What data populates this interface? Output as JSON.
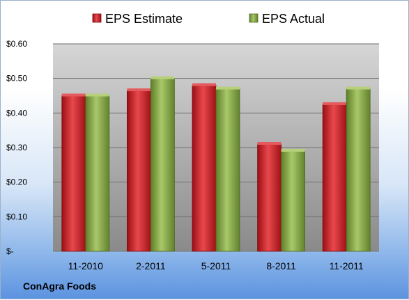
{
  "company": "ConAgra Foods",
  "chart_data": {
    "type": "bar",
    "categories": [
      "11-2010",
      "2-2011",
      "5-2011",
      "8-2011",
      "11-2011"
    ],
    "series": [
      {
        "name": "EPS Estimate",
        "values": [
          0.45,
          0.465,
          0.48,
          0.31,
          0.425
        ],
        "color": "#c8161d"
      },
      {
        "name": "EPS Actual",
        "values": [
          0.45,
          0.5,
          0.47,
          0.29,
          0.47
        ],
        "color": "#7da23a"
      }
    ],
    "ylim": [
      0,
      0.6
    ],
    "yticks": [
      0,
      0.1,
      0.2,
      0.3,
      0.4,
      0.5,
      0.6
    ],
    "ytick_labels": [
      "$-",
      "$0.10",
      "$0.20",
      "$0.30",
      "$0.40",
      "$0.50",
      "$0.60"
    ],
    "legend_position": "top",
    "grid": true
  }
}
